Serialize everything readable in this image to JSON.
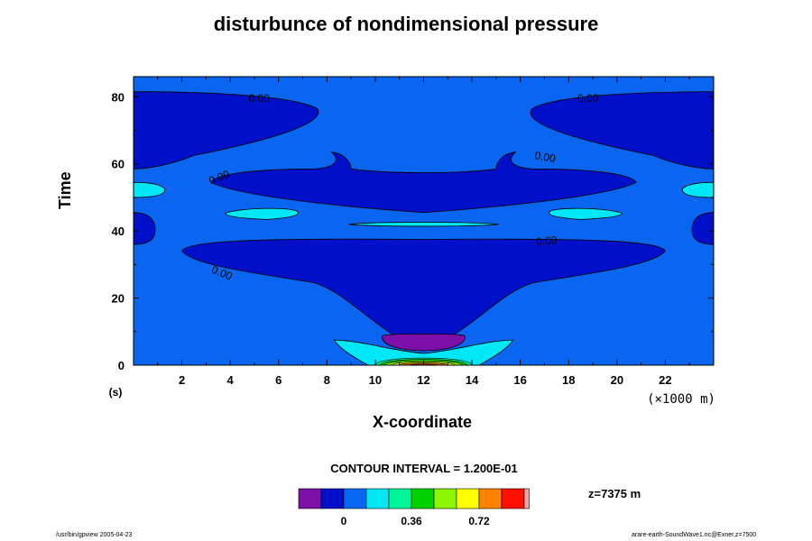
{
  "chart_data": {
    "type": "contour",
    "title": "disturbunce of nondimensional pressure",
    "xlabel": "X-coordinate",
    "ylabel": "Time",
    "x_units": "(×1000 m)",
    "y_units": "(s)",
    "xlim": [
      0,
      24
    ],
    "ylim": [
      0,
      86
    ],
    "x_ticks": [
      2,
      4,
      6,
      8,
      10,
      12,
      14,
      16,
      18,
      20,
      22
    ],
    "y_ticks": [
      0,
      20,
      40,
      60,
      80
    ],
    "contour_interval_text": "CONTOUR INTERVAL = 1.200E-01",
    "z_level_text": "z=7375 m",
    "contour_labels": [
      {
        "text": "0.00",
        "x": 5.2,
        "y": 78.5
      },
      {
        "text": "0.00",
        "x": 18.8,
        "y": 78.5
      },
      {
        "text": "0.00",
        "x": 3.6,
        "y": 55.0
      },
      {
        "text": "0.00",
        "x": 17.0,
        "y": 61.0
      },
      {
        "text": "0.00",
        "x": 17.1,
        "y": 36.0
      },
      {
        "text": "0.00",
        "x": 3.6,
        "y": 26.5
      }
    ],
    "colorbar": {
      "colors": [
        "#7b0fa8",
        "#0010c8",
        "#0a66f0",
        "#00e8f5",
        "#00f598",
        "#00d200",
        "#8cf500",
        "#ffff00",
        "#ff8200",
        "#ff1000",
        "#ffa0a0"
      ],
      "tick_labels": [
        "0",
        "0.36",
        "0.72"
      ],
      "tick_values": [
        0,
        0.36,
        0.72
      ],
      "levels_start": -0.24,
      "interval": 0.12
    },
    "grid": false
  },
  "footer": {
    "left": "/usr/bin/gpview 2005-04-23",
    "right": "arare-earth-SoundWave1.nc@Exner,z=7500"
  }
}
